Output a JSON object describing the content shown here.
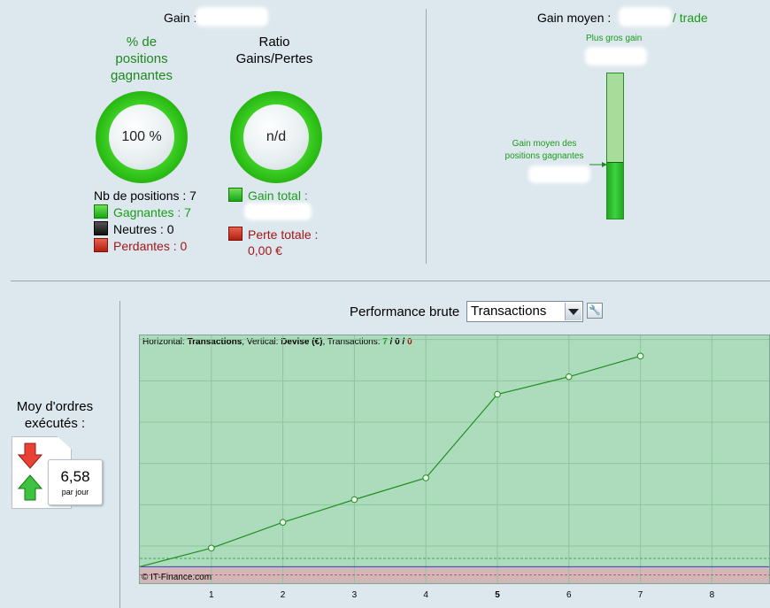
{
  "gain": {
    "label": "Gain :"
  },
  "win_rate": {
    "title_line1": "% de",
    "title_line2": "positions",
    "title_line3": "gagnantes",
    "value": "100 %",
    "fraction": 1.0
  },
  "ratio": {
    "title_line1": "Ratio",
    "title_line2": "Gains/Pertes",
    "value": "n/d"
  },
  "positions": {
    "total": "Nb de positions : 7",
    "winning": "Gagnantes : 7",
    "neutral": "Neutres : 0",
    "losing": "Perdantes : 0"
  },
  "totals": {
    "gain_label": "Gain total :",
    "loss_label": "Perte totale :",
    "loss_value": "0,00 €"
  },
  "gain_moyen": {
    "label": "Gain moyen :",
    "per_trade": "/ trade",
    "biggest_gain": "Plus gros gain",
    "avg_winning_line1": "Gain moyen des",
    "avg_winning_line2": "positions gagnantes",
    "bar_fill_fraction": 0.385
  },
  "orders": {
    "title_line1": "Moy d'ordres",
    "title_line2": "exécutés :",
    "value": "6,58",
    "unit": "par jour"
  },
  "performance": {
    "label": "Performance brute",
    "selected": "Transactions",
    "header_prefix": "Horizontal: ",
    "header_h": "Transactions",
    "header_mid": ", Vertical: ",
    "header_v": "Devise (€)",
    "header_tr": ", Transactions: ",
    "header_win": "7",
    "header_sep1": " / ",
    "header_neu": "0",
    "header_sep2": " / ",
    "header_loss": "0",
    "copyright": "© IT-Finance.com"
  },
  "colors": {
    "green_text": "#1a9c1a",
    "red_text": "#a01818",
    "chart_bg": "#acdcbc",
    "chart_line": "#1f8f1f",
    "zero_line": "#3344bb"
  },
  "chart_data": {
    "type": "line",
    "x": [
      0,
      1,
      2,
      3,
      4,
      5,
      6,
      7
    ],
    "y": [
      0,
      0.9,
      2.15,
      3.25,
      4.3,
      8.35,
      9.2,
      10.2
    ],
    "xticks": [
      "1",
      "2",
      "3",
      "4",
      "5",
      "6",
      "7",
      "8"
    ],
    "xlim": [
      0,
      8.8
    ],
    "ylim": [
      -0.8,
      11.2
    ],
    "grid": true
  }
}
